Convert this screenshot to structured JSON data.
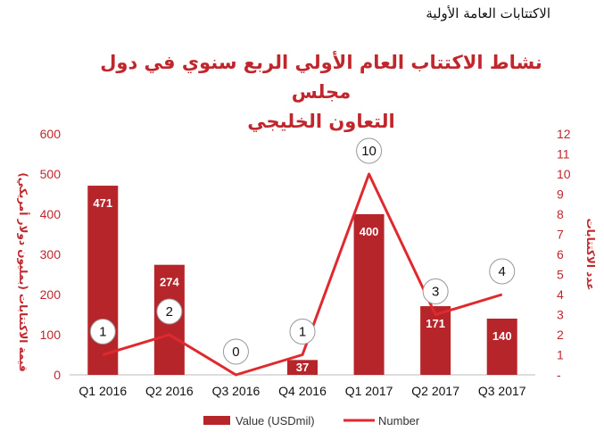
{
  "header_label": "الاكتتابات العامة الأولية",
  "colors": {
    "bar": "#b5252a",
    "line": "#e0292e",
    "text_accent": "#c0272d"
  },
  "chart_data": {
    "type": "bar",
    "title_line1": "نشاط الاكتتاب العام الأولي الربع سنوي في دول مجلس",
    "title_line2": "التعاون الخليجي",
    "categories": [
      "Q1 2016",
      "Q2 2016",
      "Q3 2016",
      "Q4 2016",
      "Q1 2017",
      "Q2 2017",
      "Q3 2017"
    ],
    "series": [
      {
        "name": "Value (USDmil)",
        "type": "bar",
        "axis": "left",
        "values": [
          471,
          274,
          0,
          37,
          400,
          171,
          140
        ]
      },
      {
        "name": "Number",
        "type": "line",
        "axis": "right",
        "values": [
          1,
          2,
          0,
          1,
          10,
          3,
          4
        ]
      }
    ],
    "bar_data_labels": [
      "471",
      "274",
      "",
      "37",
      "400",
      "171",
      "140"
    ],
    "line_data_labels": [
      "1",
      "2",
      "0",
      "1",
      "10",
      "3",
      "4"
    ],
    "ylabel_left": "قيمة الاكتتابات (بمليون دولار أمريكي)",
    "ylabel_right": "عدد الاكتتابات",
    "ylim_left": [
      0,
      600
    ],
    "yticks_left": [
      "0",
      "100",
      "200",
      "300",
      "400",
      "500",
      "600"
    ],
    "ylim_right": [
      0,
      12
    ],
    "yticks_right": [
      "-",
      "1",
      "2",
      "3",
      "4",
      "5",
      "6",
      "7",
      "8",
      "9",
      "10",
      "11",
      "12"
    ],
    "legend_position": "bottom",
    "grid": false
  }
}
